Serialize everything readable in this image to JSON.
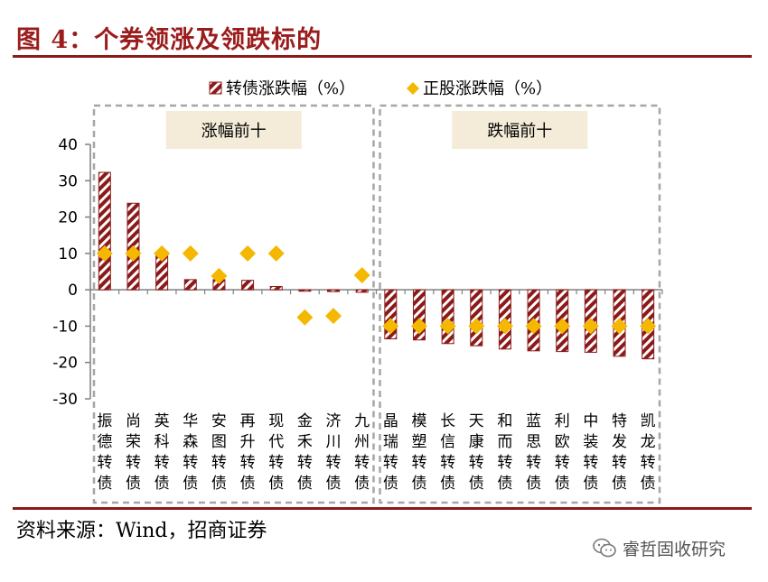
{
  "title": "图 4：个券领涨及领跌标的",
  "source": "资料来源：Wind，招商证券",
  "watermark": "睿哲固收研究",
  "colors": {
    "accent": "#8b1a1a",
    "bar": "#8b1a1a",
    "marker": "#f5b800",
    "group_box": "#a6a6a6",
    "group_label_bg": "#f4ecd8"
  },
  "chart_data": {
    "type": "bar",
    "categories": [
      "振德转债",
      "尚荣转债",
      "英科转债",
      "华森转债",
      "安图转债",
      "再升转债",
      "现代转债",
      "金禾转债",
      "济川转债",
      "九州转债",
      "晶瑞转债",
      "模塑转债",
      "长信转债",
      "天康转债",
      "和而转债",
      "蓝思转债",
      "利欧转债",
      "中装转债",
      "特发转债",
      "凯龙转债"
    ],
    "series": [
      {
        "name": "转债涨跌幅（%）",
        "type": "bar",
        "values": [
          32.3,
          23.8,
          9.5,
          2.8,
          2.8,
          2.6,
          0.9,
          -0.4,
          -0.5,
          -0.7,
          -13.5,
          -13.8,
          -14.8,
          -15.4,
          -16.3,
          -16.8,
          -17.0,
          -17.2,
          -18.3,
          -19.0
        ]
      },
      {
        "name": "正股涨跌幅（%）",
        "type": "scatter",
        "marker": "diamond",
        "values": [
          10.0,
          10.0,
          10.0,
          10.0,
          3.8,
          10.0,
          10.0,
          -7.6,
          -7.2,
          4.0,
          -10.0,
          -10.0,
          -10.0,
          -10.0,
          -10.0,
          -10.0,
          -10.0,
          -10.0,
          -10.0,
          -10.0
        ]
      }
    ],
    "ylim": [
      -30,
      40
    ],
    "yticks": [
      40,
      30,
      20,
      10,
      0,
      -10,
      -20,
      -30
    ],
    "xlabel": "",
    "ylabel": "",
    "legend": "top",
    "grid": false,
    "groups": [
      {
        "label": "涨幅前十",
        "start": 0,
        "end": 9
      },
      {
        "label": "跌幅前十",
        "start": 10,
        "end": 19
      }
    ]
  }
}
